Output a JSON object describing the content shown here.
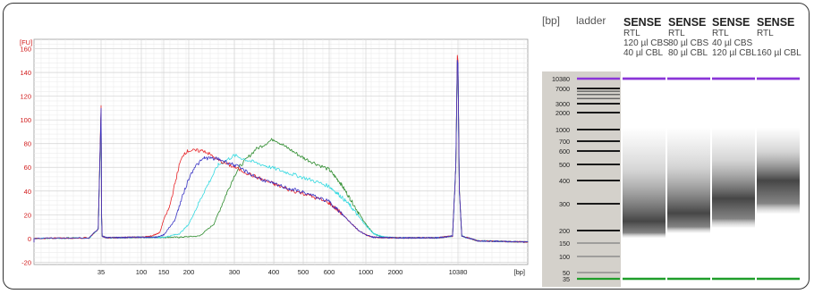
{
  "chart_data": [
    {
      "type": "line",
      "xlabel": "[bp]",
      "ylabel": "[FU]",
      "x_scale": "log",
      "x_ticks": [
        35,
        100,
        150,
        200,
        300,
        400,
        500,
        600,
        1000,
        2000,
        10380
      ],
      "y_ticks": [
        -20,
        0,
        20,
        40,
        60,
        80,
        100,
        120,
        140,
        160
      ],
      "ylim": [
        -22,
        168
      ],
      "grid": true,
      "series": [
        {
          "color": "#e8262a",
          "points": [
            [
              25,
              0
            ],
            [
              33,
              0.5
            ],
            [
              34.5,
              8
            ],
            [
              35,
              112
            ],
            [
              35.5,
              20
            ],
            [
              36,
              2
            ],
            [
              40,
              0.6
            ],
            [
              60,
              0.8
            ],
            [
              80,
              1
            ],
            [
              100,
              1
            ],
            [
              120,
              2
            ],
            [
              140,
              5
            ],
            [
              160,
              26
            ],
            [
              170,
              45
            ],
            [
              180,
              63
            ],
            [
              190,
              72
            ],
            [
              200,
              74
            ],
            [
              230,
              74
            ],
            [
              260,
              66
            ],
            [
              300,
              60
            ],
            [
              350,
              52
            ],
            [
              400,
              46
            ],
            [
              450,
              41
            ],
            [
              500,
              38
            ],
            [
              600,
              30
            ],
            [
              700,
              22
            ],
            [
              800,
              14
            ],
            [
              900,
              7
            ],
            [
              1000,
              3
            ],
            [
              1200,
              1
            ],
            [
              2000,
              0.5
            ],
            [
              6000,
              0.5
            ],
            [
              9000,
              2
            ],
            [
              9800,
              60
            ],
            [
              10200,
              155
            ],
            [
              10380,
              150
            ],
            [
              10600,
              40
            ],
            [
              11000,
              2
            ],
            [
              14000,
              -2
            ],
            [
              30000,
              -3
            ]
          ]
        },
        {
          "color": "#3833c4",
          "points": [
            [
              25,
              0
            ],
            [
              33,
              0.5
            ],
            [
              34.5,
              8
            ],
            [
              35,
              110
            ],
            [
              35.5,
              18
            ],
            [
              36,
              2
            ],
            [
              40,
              0.6
            ],
            [
              60,
              0.8
            ],
            [
              80,
              1
            ],
            [
              100,
              1
            ],
            [
              130,
              1
            ],
            [
              150,
              3
            ],
            [
              170,
              15
            ],
            [
              190,
              40
            ],
            [
              210,
              60
            ],
            [
              230,
              68
            ],
            [
              260,
              67
            ],
            [
              300,
              62
            ],
            [
              350,
              52
            ],
            [
              400,
              46
            ],
            [
              450,
              42
            ],
            [
              500,
              39
            ],
            [
              600,
              31
            ],
            [
              700,
              22
            ],
            [
              800,
              14
            ],
            [
              900,
              7
            ],
            [
              1000,
              3
            ],
            [
              1200,
              1
            ],
            [
              2000,
              0.5
            ],
            [
              6000,
              0.5
            ],
            [
              9000,
              2
            ],
            [
              9800,
              60
            ],
            [
              10200,
              150
            ],
            [
              10380,
              148
            ],
            [
              10600,
              40
            ],
            [
              11000,
              2
            ],
            [
              14000,
              -2
            ],
            [
              30000,
              -3
            ]
          ]
        },
        {
          "color": "#33d9e0",
          "points": [
            [
              25,
              0
            ],
            [
              33,
              0.5
            ],
            [
              34.5,
              8
            ],
            [
              35,
              108
            ],
            [
              35.5,
              18
            ],
            [
              36,
              2
            ],
            [
              40,
              0.6
            ],
            [
              60,
              0.8
            ],
            [
              100,
              1
            ],
            [
              150,
              1
            ],
            [
              180,
              4
            ],
            [
              200,
              12
            ],
            [
              230,
              40
            ],
            [
              260,
              62
            ],
            [
              300,
              70
            ],
            [
              330,
              66
            ],
            [
              380,
              61
            ],
            [
              450,
              55
            ],
            [
              520,
              50
            ],
            [
              600,
              44
            ],
            [
              700,
              36
            ],
            [
              800,
              28
            ],
            [
              900,
              19
            ],
            [
              1000,
              11
            ],
            [
              1200,
              4
            ],
            [
              1500,
              1.5
            ],
            [
              2000,
              0.5
            ],
            [
              6000,
              0.5
            ],
            [
              9000,
              2
            ],
            [
              9800,
              60
            ],
            [
              10200,
              150
            ],
            [
              10380,
              146
            ],
            [
              10600,
              40
            ],
            [
              11000,
              2
            ],
            [
              14000,
              -2
            ],
            [
              30000,
              -3
            ]
          ]
        },
        {
          "color": "#2c8b2c",
          "points": [
            [
              25,
              0
            ],
            [
              33,
              0.5
            ],
            [
              34.5,
              8
            ],
            [
              35,
              106
            ],
            [
              35.5,
              17
            ],
            [
              36,
              2
            ],
            [
              40,
              0.6
            ],
            [
              60,
              0.8
            ],
            [
              100,
              1
            ],
            [
              180,
              1
            ],
            [
              220,
              2
            ],
            [
              250,
              12
            ],
            [
              280,
              38
            ],
            [
              310,
              60
            ],
            [
              350,
              75
            ],
            [
              400,
              84
            ],
            [
              440,
              77
            ],
            [
              500,
              68
            ],
            [
              600,
              58
            ],
            [
              700,
              47
            ],
            [
              800,
              34
            ],
            [
              900,
              22
            ],
            [
              1000,
              12
            ],
            [
              1200,
              4
            ],
            [
              1500,
              1
            ],
            [
              2000,
              0.5
            ],
            [
              6000,
              0.5
            ],
            [
              9000,
              2
            ],
            [
              9800,
              60
            ],
            [
              10200,
              150
            ],
            [
              10380,
              146
            ],
            [
              10600,
              40
            ],
            [
              11000,
              2
            ],
            [
              14000,
              -2
            ],
            [
              30000,
              -3
            ]
          ]
        }
      ]
    },
    {
      "type": "gel",
      "unit_label": "[bp]",
      "ladder_label": "ladder",
      "ladder_bands": [
        35,
        50,
        100,
        150,
        200,
        300,
        400,
        500,
        600,
        700,
        1000,
        2000,
        3000,
        7000,
        10380
      ],
      "band_labels": [
        "35",
        "50",
        "100",
        "150",
        "200",
        "300",
        "400",
        "500",
        "600",
        "700",
        "1000",
        "2000",
        "3000",
        "7000",
        "10380"
      ],
      "lanes": [
        {
          "title": "SENSE",
          "lines": [
            "RTL",
            "120 µl CBS",
            "40 µl CBL"
          ],
          "smear_center_bp": 230,
          "smear_lo_bp": 170,
          "smear_hi_bp": 1100
        },
        {
          "title": "SENSE",
          "lines": [
            "RTL",
            "80 µl CBS",
            "80 µl CBL"
          ],
          "smear_center_bp": 260,
          "smear_lo_bp": 190,
          "smear_hi_bp": 1100
        },
        {
          "title": "SENSE",
          "lines": [
            "RTL",
            "40 µl CBS",
            "120 µl CBL"
          ],
          "smear_center_bp": 320,
          "smear_lo_bp": 210,
          "smear_hi_bp": 1100
        },
        {
          "title": "SENSE",
          "lines": [
            "RTL",
            "",
            "160 µl CBL"
          ],
          "smear_center_bp": 400,
          "smear_lo_bp": 260,
          "smear_hi_bp": 1100
        }
      ],
      "colors": {
        "upper_marker": "#8a35d8",
        "lower_marker": "#1f9e2a",
        "ladder_bg": "#d4d1cb",
        "band": "#1a1a1a"
      }
    }
  ]
}
